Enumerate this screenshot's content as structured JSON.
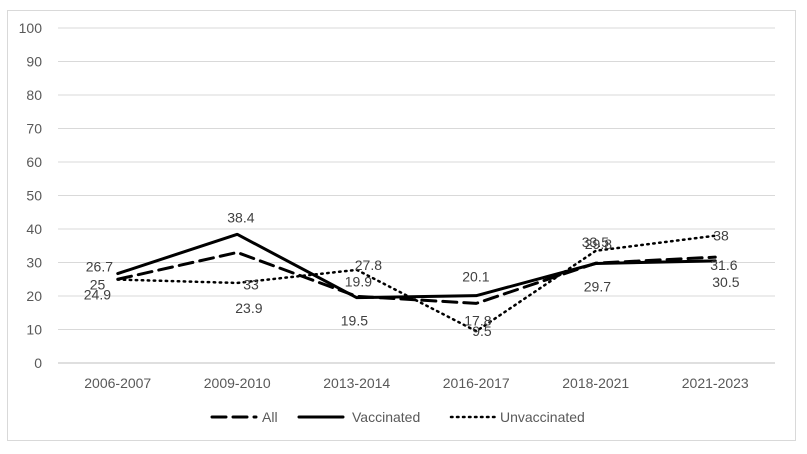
{
  "chart_data": {
    "type": "line",
    "categories": [
      "2006-2007",
      "2009-2010",
      "2013-2014",
      "2016-2017",
      "2018-2021",
      "2021-2023"
    ],
    "series": [
      {
        "name": "All",
        "style": "dashed",
        "color": "#000000",
        "values": [
          25,
          33,
          19.9,
          17.8,
          29.8,
          31.6
        ]
      },
      {
        "name": "Vaccinated",
        "style": "solid",
        "color": "#000000",
        "values": [
          26.7,
          38.4,
          19.5,
          20.1,
          29.7,
          30.5
        ]
      },
      {
        "name": "Unvaccinated",
        "style": "dotted",
        "color": "#000000",
        "values": [
          24.9,
          23.9,
          27.8,
          9.5,
          33.5,
          38
        ]
      }
    ],
    "ylim": [
      0,
      100
    ],
    "yticks": [
      0,
      10,
      20,
      30,
      40,
      50,
      60,
      70,
      80,
      90,
      100
    ],
    "title": "",
    "xlabel": "",
    "ylabel": "",
    "grid": "horizontal",
    "legend": "bottom-center",
    "data_labels": true
  }
}
